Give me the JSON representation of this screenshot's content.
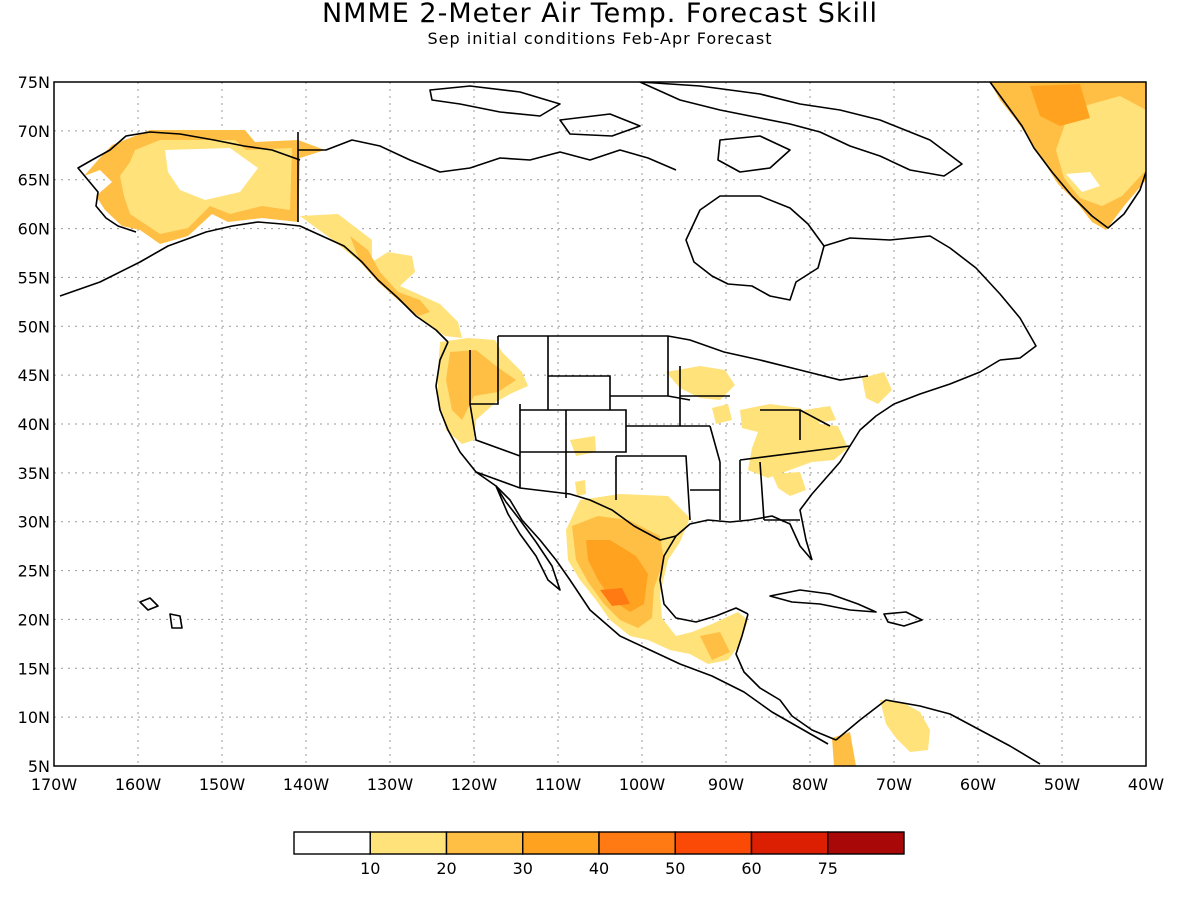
{
  "title": "NMME 2-Meter Air Temp. Forecast Skill",
  "subtitle": "Sep initial conditions   Feb-Apr Forecast",
  "lat_labels": [
    "75N",
    "70N",
    "65N",
    "60N",
    "55N",
    "50N",
    "45N",
    "40N",
    "35N",
    "30N",
    "25N",
    "20N",
    "15N",
    "10N",
    "5N"
  ],
  "lon_labels": [
    "170W",
    "160W",
    "150W",
    "140W",
    "130W",
    "120W",
    "110W",
    "100W",
    "90W",
    "80W",
    "70W",
    "60W",
    "50W",
    "40W"
  ],
  "legend": {
    "colors": [
      "#ffffff",
      "#ffe27a",
      "#ffbf45",
      "#ffa21f",
      "#ff7a12",
      "#fb4a06",
      "#dc1f02",
      "#a80808"
    ],
    "labels": [
      "10",
      "20",
      "30",
      "40",
      "50",
      "60",
      "75"
    ]
  }
}
